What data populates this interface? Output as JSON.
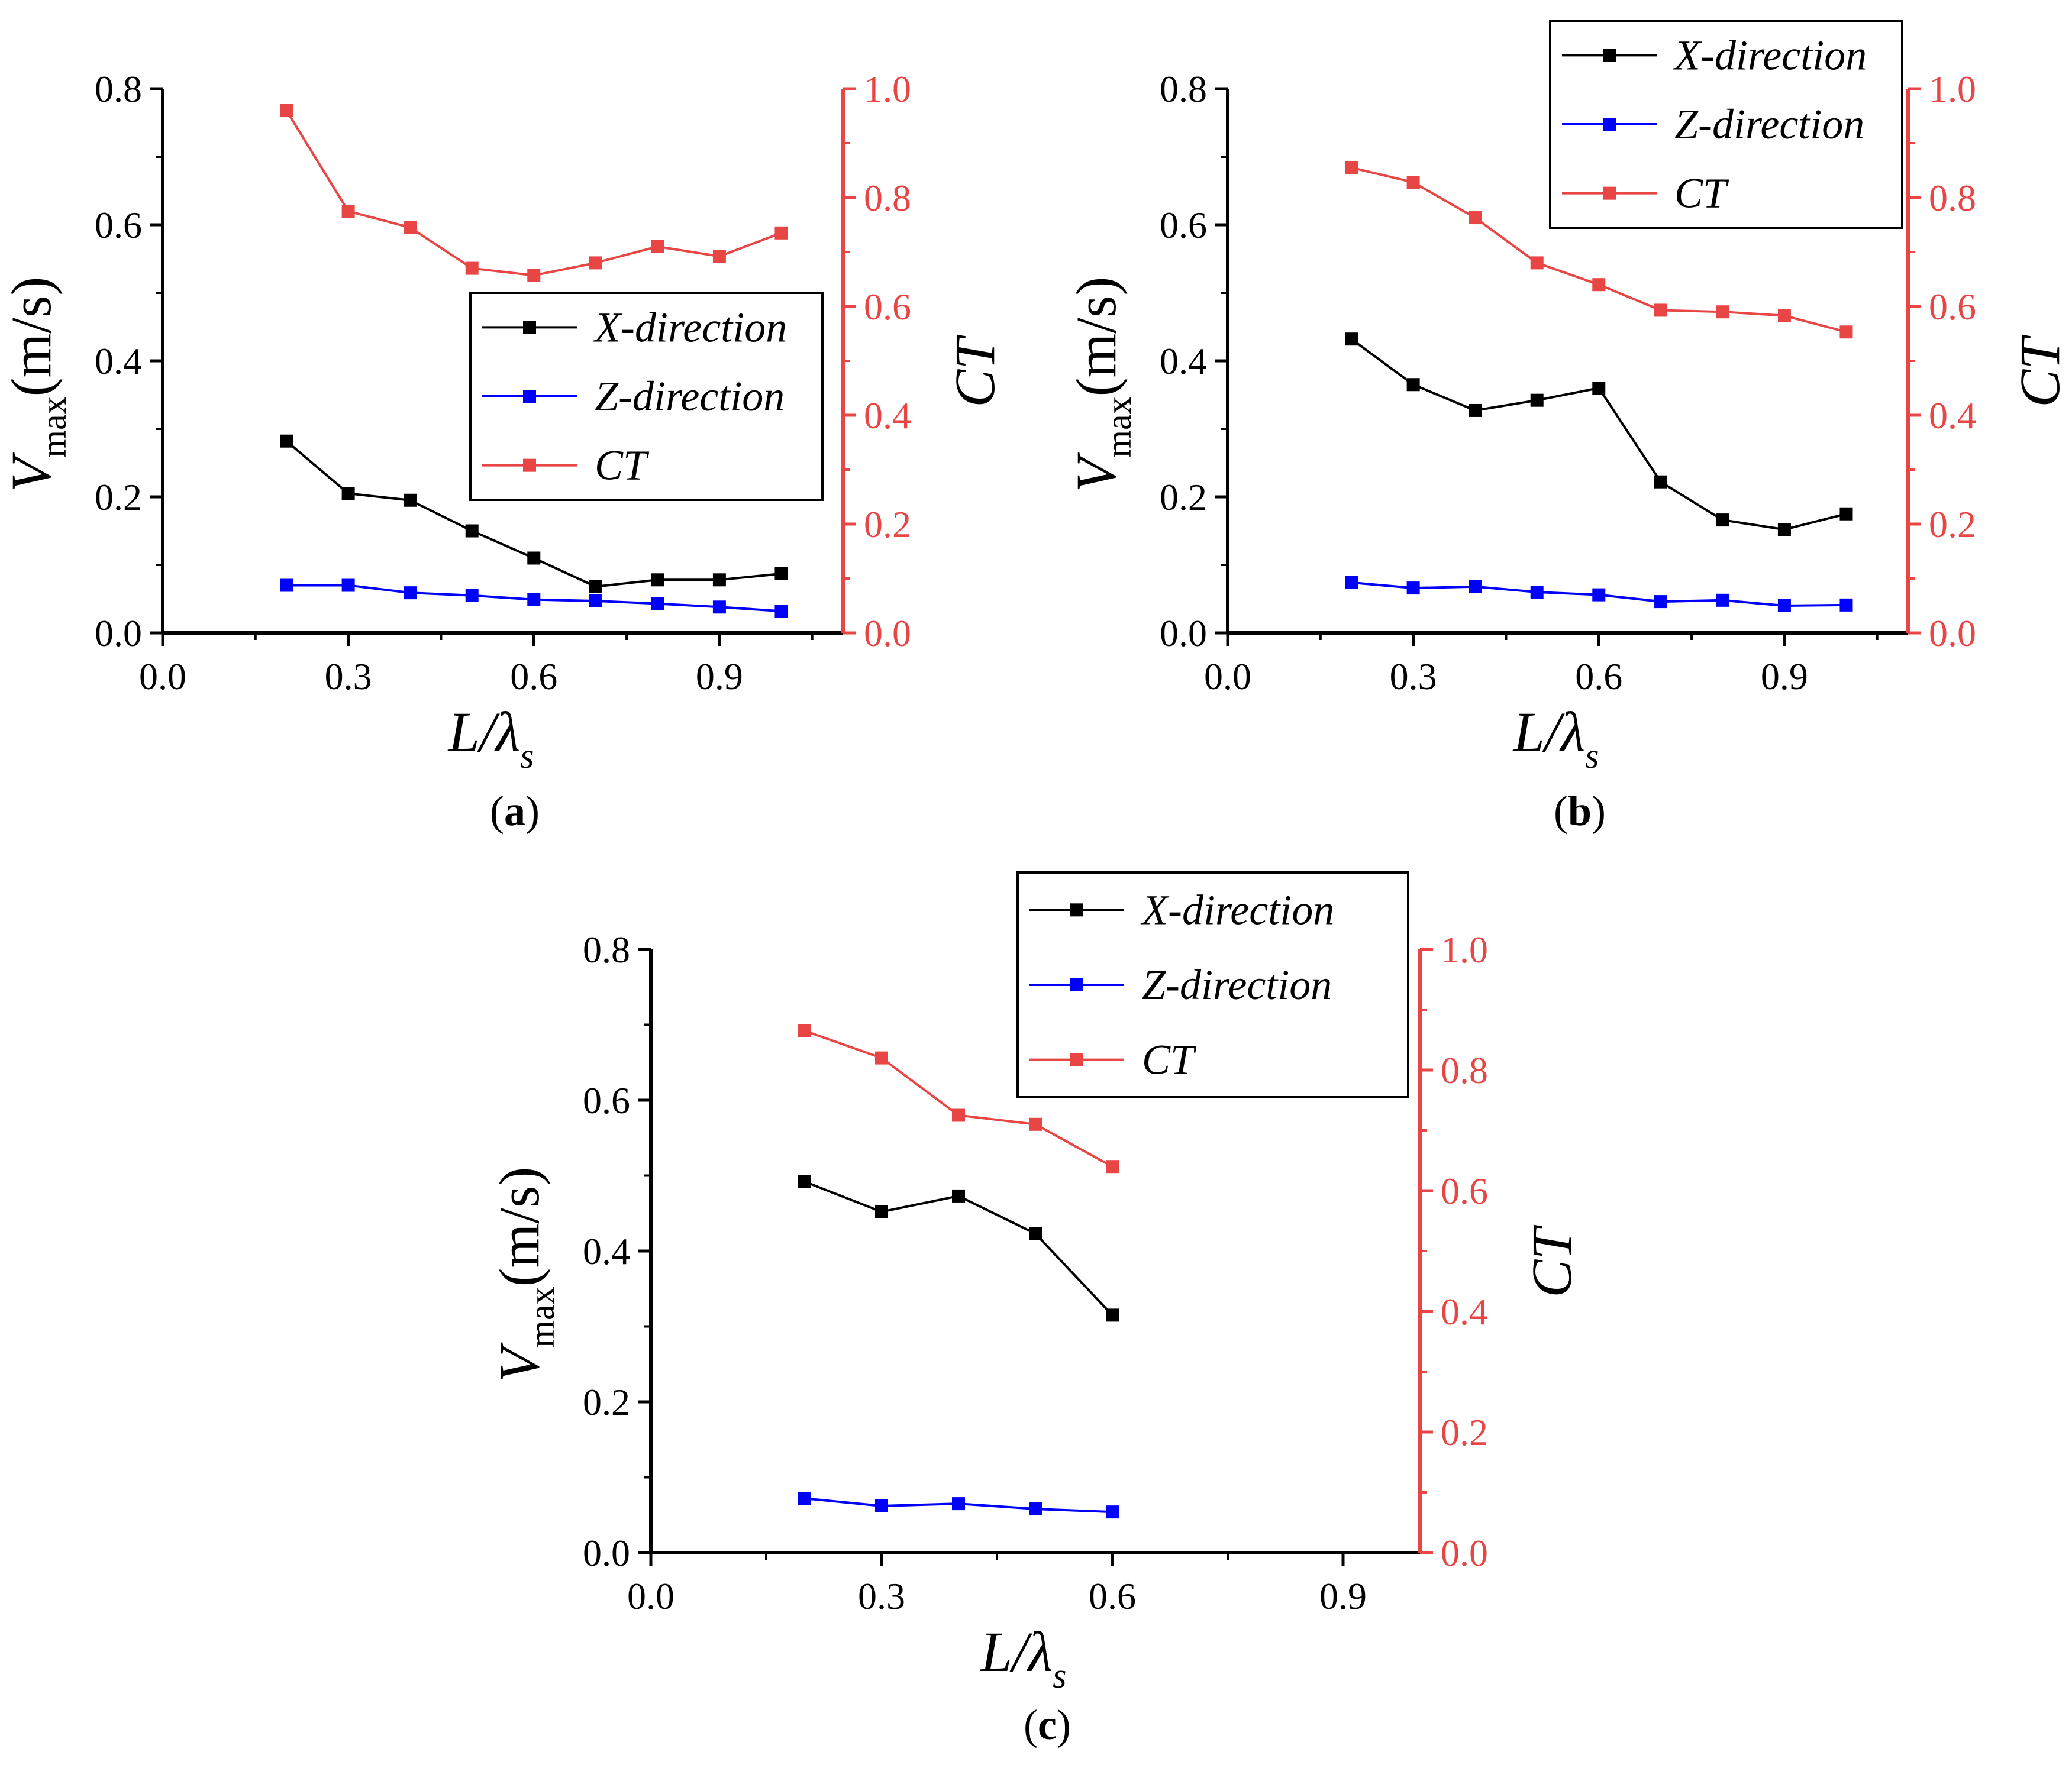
{
  "chart_data": [
    {
      "type": "line",
      "panel_label": "a",
      "xlabel": {
        "main": "L/λ",
        "sub": "s"
      },
      "ylabel": {
        "main": "V",
        "sub": "max",
        "unit": "(m/s)"
      },
      "y2label": "CT",
      "xlim": [
        0.0,
        1.1
      ],
      "ylim": [
        0.0,
        0.8
      ],
      "y2lim": [
        0.0,
        1.0
      ],
      "xticks": [
        "0.0",
        "0.3",
        "0.6",
        "0.9"
      ],
      "yticks": [
        "0.0",
        "0.2",
        "0.4",
        "0.6",
        "0.8"
      ],
      "y2ticks": [
        "0.0",
        "0.2",
        "0.4",
        "0.6",
        "0.8",
        "1.0"
      ],
      "legend_position": "center-right",
      "series": [
        {
          "name": "X-direction",
          "axis": "left",
          "color": "#000000",
          "x": [
            0.2,
            0.3,
            0.4,
            0.5,
            0.6,
            0.7,
            0.8,
            0.9,
            1.0
          ],
          "y": [
            0.282,
            0.205,
            0.195,
            0.15,
            0.11,
            0.068,
            0.078,
            0.078,
            0.087
          ]
        },
        {
          "name": "Z-direction",
          "axis": "left",
          "color": "#0000ff",
          "x": [
            0.2,
            0.3,
            0.4,
            0.5,
            0.6,
            0.7,
            0.8,
            0.9,
            1.0
          ],
          "y": [
            0.07,
            0.07,
            0.059,
            0.055,
            0.049,
            0.047,
            0.043,
            0.038,
            0.032
          ]
        },
        {
          "name": "CT",
          "axis": "right",
          "color": "#e84545",
          "x": [
            0.2,
            0.3,
            0.4,
            0.5,
            0.6,
            0.7,
            0.8,
            0.9,
            1.0
          ],
          "y": [
            0.96,
            0.775,
            0.745,
            0.67,
            0.657,
            0.68,
            0.71,
            0.692,
            0.735
          ]
        }
      ]
    },
    {
      "type": "line",
      "panel_label": "b",
      "xlabel": {
        "main": "L/λ",
        "sub": "s"
      },
      "ylabel": {
        "main": "V",
        "sub": "max",
        "unit": "(m/s)"
      },
      "y2label": "CT",
      "xlim": [
        0.0,
        1.1
      ],
      "ylim": [
        0.0,
        0.8
      ],
      "y2lim": [
        0.0,
        1.0
      ],
      "xticks": [
        "0.0",
        "0.3",
        "0.6",
        "0.9"
      ],
      "yticks": [
        "0.0",
        "0.2",
        "0.4",
        "0.6",
        "0.8"
      ],
      "y2ticks": [
        "0.0",
        "0.2",
        "0.4",
        "0.6",
        "0.8",
        "1.0"
      ],
      "legend_position": "top-right",
      "series": [
        {
          "name": "X-direction",
          "axis": "left",
          "color": "#000000",
          "x": [
            0.2,
            0.3,
            0.4,
            0.5,
            0.6,
            0.7,
            0.8,
            0.9,
            1.0
          ],
          "y": [
            0.432,
            0.365,
            0.327,
            0.342,
            0.36,
            0.222,
            0.166,
            0.152,
            0.175
          ]
        },
        {
          "name": "Z-direction",
          "axis": "left",
          "color": "#0000ff",
          "x": [
            0.2,
            0.3,
            0.4,
            0.5,
            0.6,
            0.7,
            0.8,
            0.9,
            1.0
          ],
          "y": [
            0.074,
            0.066,
            0.068,
            0.06,
            0.056,
            0.046,
            0.048,
            0.04,
            0.041
          ]
        },
        {
          "name": "CT",
          "axis": "right",
          "color": "#e84545",
          "x": [
            0.2,
            0.3,
            0.4,
            0.5,
            0.6,
            0.7,
            0.8,
            0.9,
            1.0
          ],
          "y": [
            0.855,
            0.828,
            0.763,
            0.68,
            0.64,
            0.593,
            0.59,
            0.583,
            0.553
          ]
        }
      ]
    },
    {
      "type": "line",
      "panel_label": "c",
      "xlabel": {
        "main": "L/λ",
        "sub": "s"
      },
      "ylabel": {
        "main": "V",
        "sub": "max",
        "unit": "(m/s)"
      },
      "y2label": "CT",
      "xlim": [
        0.0,
        1.0
      ],
      "ylim": [
        0.0,
        0.8
      ],
      "y2lim": [
        0.0,
        1.0
      ],
      "xticks": [
        "0.0",
        "0.3",
        "0.6",
        "0.9"
      ],
      "yticks": [
        "0.0",
        "0.2",
        "0.4",
        "0.6",
        "0.8"
      ],
      "y2ticks": [
        "0.0",
        "0.2",
        "0.4",
        "0.6",
        "0.8",
        "1.0"
      ],
      "legend_position": "top-right",
      "series": [
        {
          "name": "X-direction",
          "axis": "left",
          "color": "#000000",
          "x": [
            0.2,
            0.3,
            0.4,
            0.5,
            0.6
          ],
          "y": [
            0.492,
            0.452,
            0.473,
            0.423,
            0.315
          ]
        },
        {
          "name": "Z-direction",
          "axis": "left",
          "color": "#0000ff",
          "x": [
            0.2,
            0.3,
            0.4,
            0.5,
            0.6
          ],
          "y": [
            0.072,
            0.062,
            0.065,
            0.058,
            0.054
          ]
        },
        {
          "name": "CT",
          "axis": "right",
          "color": "#e84545",
          "x": [
            0.2,
            0.3,
            0.4,
            0.5,
            0.6
          ],
          "y": [
            0.865,
            0.82,
            0.725,
            0.71,
            0.64
          ]
        }
      ]
    }
  ]
}
